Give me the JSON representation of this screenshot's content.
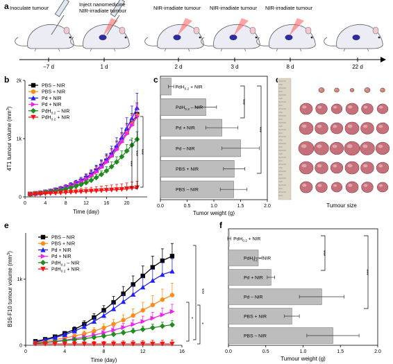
{
  "panel_labels": {
    "a": "a",
    "b": "b",
    "c": "c",
    "d": "d",
    "e": "e",
    "f": "f"
  },
  "timeline": {
    "events": [
      {
        "label": "Inoculate tumour",
        "day": "−7 d"
      },
      {
        "label": "Inject nanomedicine\nNIR-irradiate tumour",
        "day": "1 d"
      },
      {
        "label": "NIR-irradiate tumour",
        "day": "2 d"
      },
      {
        "label": "NIR-irradiate tumour",
        "day": "3 d"
      },
      {
        "label": "NIR-irradiate tumour",
        "day": "8 d"
      },
      {
        "label": "",
        "day": "22 d"
      }
    ]
  },
  "photo": {
    "caption": "Tumour size",
    "rows": [
      5,
      6,
      6,
      6,
      6,
      6
    ]
  },
  "colors": {
    "black": "#000000",
    "orange": "#ff8c1a",
    "blue": "#1f1fff",
    "magenta": "#ee22ee",
    "green": "#1e8c1e",
    "red": "#ff1010",
    "bar": "#bdbdbd"
  },
  "chart_data": [
    {
      "id": "b",
      "type": "line",
      "xlabel": "Time (day)",
      "ylabel": "4T1 tumour volume (mm³)",
      "xlim": [
        0,
        24
      ],
      "ylim": [
        0,
        2000
      ],
      "xticks": [
        0,
        4,
        8,
        12,
        16,
        20
      ],
      "yticks": [
        0,
        1000,
        2000
      ],
      "yticklabels": [
        "0",
        "1k",
        "2k"
      ],
      "x": [
        1,
        2,
        3,
        4,
        5,
        6,
        7,
        8,
        9,
        10,
        11,
        12,
        13,
        14,
        15,
        16,
        17,
        18,
        19,
        20,
        21,
        22
      ],
      "series": [
        {
          "name": "PBS – NIR",
          "color": "black",
          "marker": "square",
          "values": [
            50,
            60,
            70,
            85,
            100,
            120,
            140,
            165,
            195,
            230,
            270,
            320,
            380,
            450,
            530,
            620,
            720,
            840,
            970,
            1110,
            1260,
            1420
          ],
          "errors": [
            10,
            12,
            15,
            18,
            20,
            25,
            30,
            35,
            40,
            45,
            50,
            60,
            70,
            80,
            90,
            100,
            110,
            120,
            130,
            150,
            170,
            190
          ]
        },
        {
          "name": "PBS + NIR",
          "color": "orange",
          "marker": "circle",
          "values": [
            50,
            60,
            70,
            85,
            100,
            118,
            138,
            162,
            190,
            225,
            265,
            312,
            370,
            440,
            520,
            610,
            710,
            830,
            960,
            1100,
            1250,
            1400
          ],
          "errors": [
            10,
            12,
            15,
            18,
            20,
            25,
            30,
            35,
            40,
            45,
            50,
            60,
            70,
            80,
            90,
            100,
            110,
            120,
            130,
            150,
            170,
            190
          ]
        },
        {
          "name": "Pd + NIR",
          "color": "blue",
          "marker": "triangle-up",
          "values": [
            50,
            62,
            72,
            88,
            105,
            125,
            148,
            175,
            205,
            240,
            285,
            335,
            395,
            465,
            545,
            640,
            750,
            875,
            1020,
            1180,
            1350,
            1530
          ],
          "errors": [
            10,
            12,
            15,
            18,
            20,
            25,
            30,
            35,
            40,
            45,
            50,
            60,
            70,
            80,
            90,
            100,
            120,
            140,
            160,
            180,
            210,
            250
          ]
        },
        {
          "name": "Pd + NIR",
          "color": "magenta",
          "marker": "triangle-right",
          "values": [
            50,
            60,
            70,
            84,
            98,
            116,
            136,
            160,
            188,
            222,
            262,
            308,
            362,
            428,
            505,
            595,
            695,
            810,
            940,
            1080,
            1230,
            1380
          ],
          "errors": [
            10,
            12,
            15,
            18,
            20,
            25,
            30,
            35,
            40,
            45,
            50,
            60,
            70,
            80,
            90,
            100,
            110,
            120,
            130,
            150,
            170,
            190
          ]
        },
        {
          "name": "PdH₀.₂ – NIR",
          "color": "green",
          "marker": "diamond",
          "values": [
            45,
            55,
            65,
            75,
            88,
            102,
            118,
            136,
            158,
            183,
            212,
            246,
            286,
            332,
            386,
            448,
            520,
            600,
            690,
            790,
            890,
            990
          ],
          "errors": [
            10,
            12,
            14,
            16,
            18,
            20,
            24,
            28,
            32,
            36,
            40,
            45,
            50,
            55,
            60,
            70,
            80,
            90,
            100,
            110,
            120,
            130
          ]
        },
        {
          "name": "PdH₀.₂ + NIR",
          "color": "red",
          "marker": "triangle-down",
          "values": [
            40,
            45,
            50,
            55,
            60,
            65,
            70,
            75,
            80,
            85,
            90,
            95,
            100,
            105,
            110,
            115,
            120,
            125,
            130,
            140,
            150,
            160
          ],
          "errors": [
            10,
            12,
            15,
            20,
            25,
            30,
            35,
            40,
            45,
            50,
            55,
            60,
            65,
            70,
            75,
            80,
            85,
            90,
            95,
            100,
            105,
            110
          ]
        }
      ],
      "significance": [
        "***",
        "***",
        "***"
      ]
    },
    {
      "id": "c",
      "type": "bar",
      "xlabel": "Tumor weight (g)",
      "xlim": [
        0,
        2.0
      ],
      "xticks": [
        0,
        0.5,
        1.0,
        1.5,
        2.0
      ],
      "xticklabels": [
        "0.0",
        "0.5",
        "1.0",
        "1.5",
        "2.0"
      ],
      "categories": [
        "PdH₀.₂ + NIR",
        "PdH₀.₂ – NIR",
        "Pd + NIR",
        "Pd – NIR",
        "PBS + NIR",
        "PBS – NIR"
      ],
      "values": [
        0.2,
        0.85,
        1.15,
        1.5,
        1.38,
        1.37
      ],
      "errors": [
        0.05,
        0.2,
        0.3,
        0.35,
        0.2,
        0.25
      ],
      "significance": [
        "***",
        "***"
      ]
    },
    {
      "id": "e",
      "type": "line",
      "xlabel": "Time (day)",
      "ylabel": "B16-F10 tumour volume (mm³)",
      "xlim": [
        0,
        16
      ],
      "ylim": [
        0,
        1700
      ],
      "xticks": [
        0,
        4,
        8,
        12,
        16
      ],
      "yticks": [
        0,
        1000
      ],
      "yticklabels": [
        "0",
        "1k"
      ],
      "x": [
        1,
        2,
        3,
        4,
        5,
        6,
        7,
        8,
        9,
        10,
        11,
        12,
        13,
        14,
        15
      ],
      "series": [
        {
          "name": "PBS – NIR",
          "color": "black",
          "marker": "square",
          "values": [
            60,
            90,
            130,
            180,
            240,
            320,
            420,
            530,
            650,
            780,
            920,
            1050,
            1180,
            1280,
            1350
          ],
          "errors": [
            15,
            20,
            25,
            30,
            40,
            50,
            60,
            70,
            90,
            110,
            130,
            150,
            170,
            180,
            190
          ]
        },
        {
          "name": "PBS + NIR",
          "color": "orange",
          "marker": "circle",
          "values": [
            40,
            60,
            85,
            110,
            140,
            175,
            215,
            265,
            320,
            380,
            450,
            530,
            610,
            690,
            760
          ],
          "errors": [
            10,
            15,
            20,
            25,
            30,
            40,
            50,
            60,
            70,
            80,
            100,
            120,
            140,
            160,
            180
          ]
        },
        {
          "name": "Pd + NIR",
          "color": "blue",
          "marker": "triangle-up",
          "values": [
            50,
            80,
            115,
            160,
            215,
            280,
            360,
            450,
            550,
            660,
            770,
            880,
            980,
            1070,
            1120
          ],
          "errors": [
            15,
            20,
            25,
            30,
            40,
            50,
            60,
            70,
            90,
            110,
            130,
            150,
            170,
            180,
            190
          ]
        },
        {
          "name": "Pd + NIR",
          "color": "magenta",
          "marker": "triangle-right",
          "values": [
            30,
            45,
            60,
            80,
            100,
            125,
            155,
            190,
            230,
            270,
            315,
            360,
            410,
            460,
            510
          ],
          "errors": [
            10,
            12,
            15,
            20,
            25,
            30,
            35,
            40,
            50,
            60,
            70,
            80,
            90,
            100,
            110
          ]
        },
        {
          "name": "PdH₀.₂ – NIR",
          "color": "green",
          "marker": "diamond",
          "values": [
            30,
            40,
            55,
            70,
            85,
            100,
            120,
            140,
            165,
            190,
            215,
            240,
            265,
            290,
            310
          ],
          "errors": [
            8,
            10,
            12,
            15,
            18,
            22,
            26,
            30,
            35,
            40,
            45,
            50,
            55,
            60,
            65
          ]
        },
        {
          "name": "PdH₀.₂ + NIR",
          "color": "red",
          "marker": "triangle-down",
          "values": [
            20,
            20,
            20,
            20,
            20,
            20,
            20,
            20,
            20,
            20,
            20,
            20,
            20,
            20,
            20
          ],
          "errors": [
            20,
            25,
            30,
            30,
            35,
            35,
            40,
            40,
            45,
            45,
            50,
            50,
            55,
            55,
            60
          ]
        }
      ],
      "significance": [
        "*",
        "*",
        "***"
      ]
    },
    {
      "id": "f",
      "type": "bar",
      "xlabel": "Tumour weight (g)",
      "xlim": [
        0,
        2.0
      ],
      "xticks": [
        0,
        0.5,
        1.0,
        1.5,
        2.0
      ],
      "xticklabels": [
        "0.0",
        "0.5",
        "1.0",
        "1.5",
        "2.0"
      ],
      "categories": [
        "PdH₀.₂ + NIR",
        "PdH₀.₂ – NIR",
        "Pd + NIR",
        "Pd – NIR",
        "PBS + NIR",
        "PBS – NIR"
      ],
      "values": [
        0.01,
        0.4,
        0.57,
        1.25,
        0.85,
        1.4
      ],
      "errors": [
        0.02,
        0.05,
        0.05,
        0.3,
        0.1,
        0.35
      ],
      "significance": [
        "***",
        "***"
      ]
    }
  ]
}
